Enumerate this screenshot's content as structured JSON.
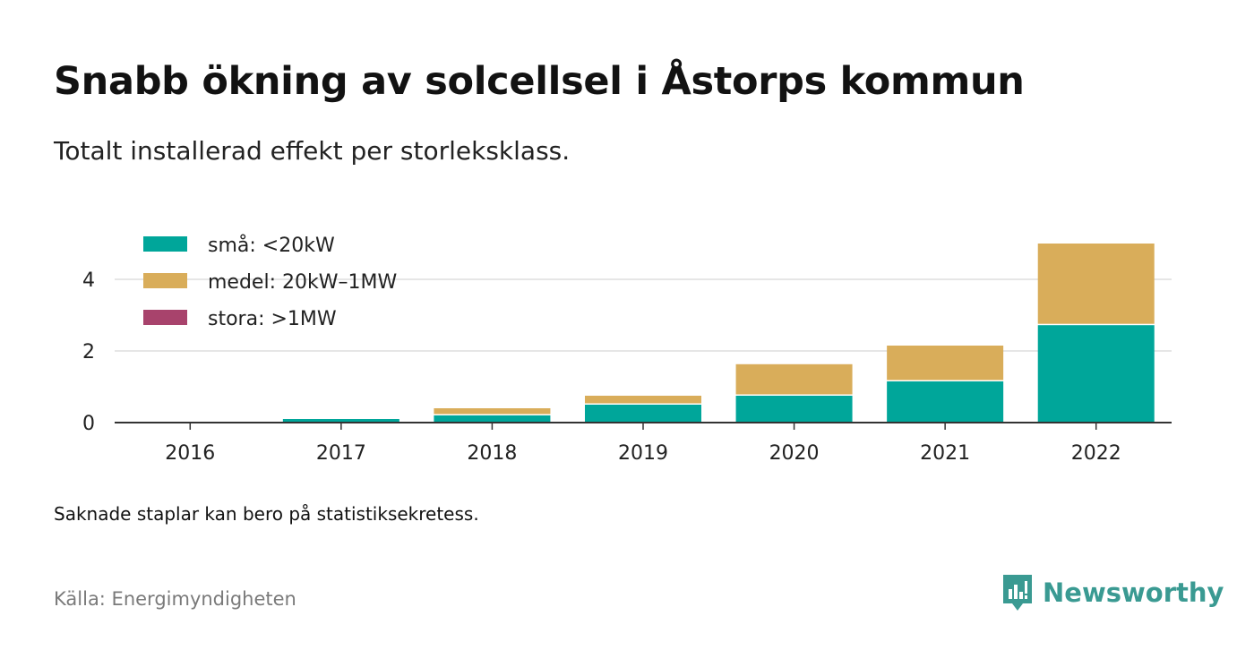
{
  "header": {
    "title": "Snabb ökning av solcellsel i Åstorps kommun",
    "subtitle": "Totalt installerad effekt per storleksklass."
  },
  "footer": {
    "note": "Saknade staplar kan bero på statistiksekretess.",
    "source": "Källa: Energimyndigheten",
    "brand": "Newsworthy"
  },
  "colors": {
    "sma": "#00a69a",
    "medel": "#d9ad5a",
    "stora": "#a8436c",
    "grid": "#dddddd",
    "axis": "#333333",
    "brand": "#3a9a92"
  },
  "chart_data": {
    "type": "bar",
    "stacked": true,
    "categories": [
      "2016",
      "2017",
      "2018",
      "2019",
      "2020",
      "2021",
      "2022"
    ],
    "series": [
      {
        "name": "små: <20kW",
        "color": "#00a69a",
        "values": [
          0.02,
          0.1,
          0.2,
          0.5,
          0.75,
          1.15,
          2.72
        ]
      },
      {
        "name": "medel: 20kW–1MW",
        "color": "#d9ad5a",
        "values": [
          0.0,
          0.0,
          0.2,
          0.25,
          0.88,
          1.0,
          2.28
        ]
      },
      {
        "name": "stora: >1MW",
        "color": "#a8436c",
        "values": [
          0,
          0,
          0,
          0,
          0,
          0,
          0
        ]
      }
    ],
    "yticks": [
      0,
      2,
      4
    ],
    "ylim": [
      0,
      5.2
    ],
    "grid": true,
    "legend_position": "top-left",
    "xlabel": "",
    "ylabel": ""
  }
}
